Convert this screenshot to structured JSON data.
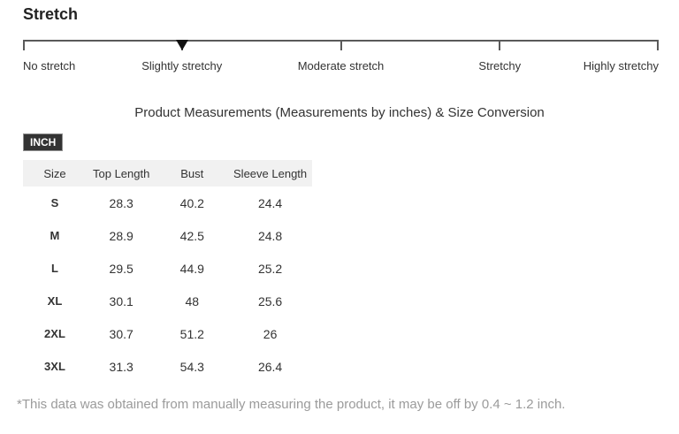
{
  "section": {
    "heading": "Stretch"
  },
  "stretch_scale": {
    "levels": [
      "No stretch",
      "Slightly stretchy",
      "Moderate stretch",
      "Stretchy",
      "Highly stretchy"
    ],
    "selected_level": "Slightly stretchy",
    "marker_position_percent": 25
  },
  "measurements": {
    "title": "Product Measurements (Measurements by inches) & Size Conversion",
    "unit_label": "INCH",
    "table": {
      "headers": [
        "Size",
        "Top Length",
        "Bust",
        "Sleeve Length"
      ],
      "rows": [
        {
          "size": "S",
          "top_length": "28.3",
          "bust": "40.2",
          "sleeve_length": "24.4"
        },
        {
          "size": "M",
          "top_length": "28.9",
          "bust": "42.5",
          "sleeve_length": "24.8"
        },
        {
          "size": "L",
          "top_length": "29.5",
          "bust": "44.9",
          "sleeve_length": "25.2"
        },
        {
          "size": "XL",
          "top_length": "30.1",
          "bust": "48",
          "sleeve_length": "25.6"
        },
        {
          "size": "2XL",
          "top_length": "30.7",
          "bust": "51.2",
          "sleeve_length": "26"
        },
        {
          "size": "3XL",
          "top_length": "31.3",
          "bust": "54.3",
          "sleeve_length": "26.4"
        }
      ]
    },
    "footnote": "*This data was obtained from manually measuring the product, it may be off by 0.4 ~ 1.2 inch."
  },
  "colors": {
    "heading_text": "#222222",
    "scale_line": "#5a5a5a",
    "marker": "#111111",
    "body_text": "#333333",
    "badge_bg": "#333333",
    "badge_text": "#ffffff",
    "table_header_bg": "#f1f1f1",
    "footnote_text": "#9b9b9b"
  }
}
